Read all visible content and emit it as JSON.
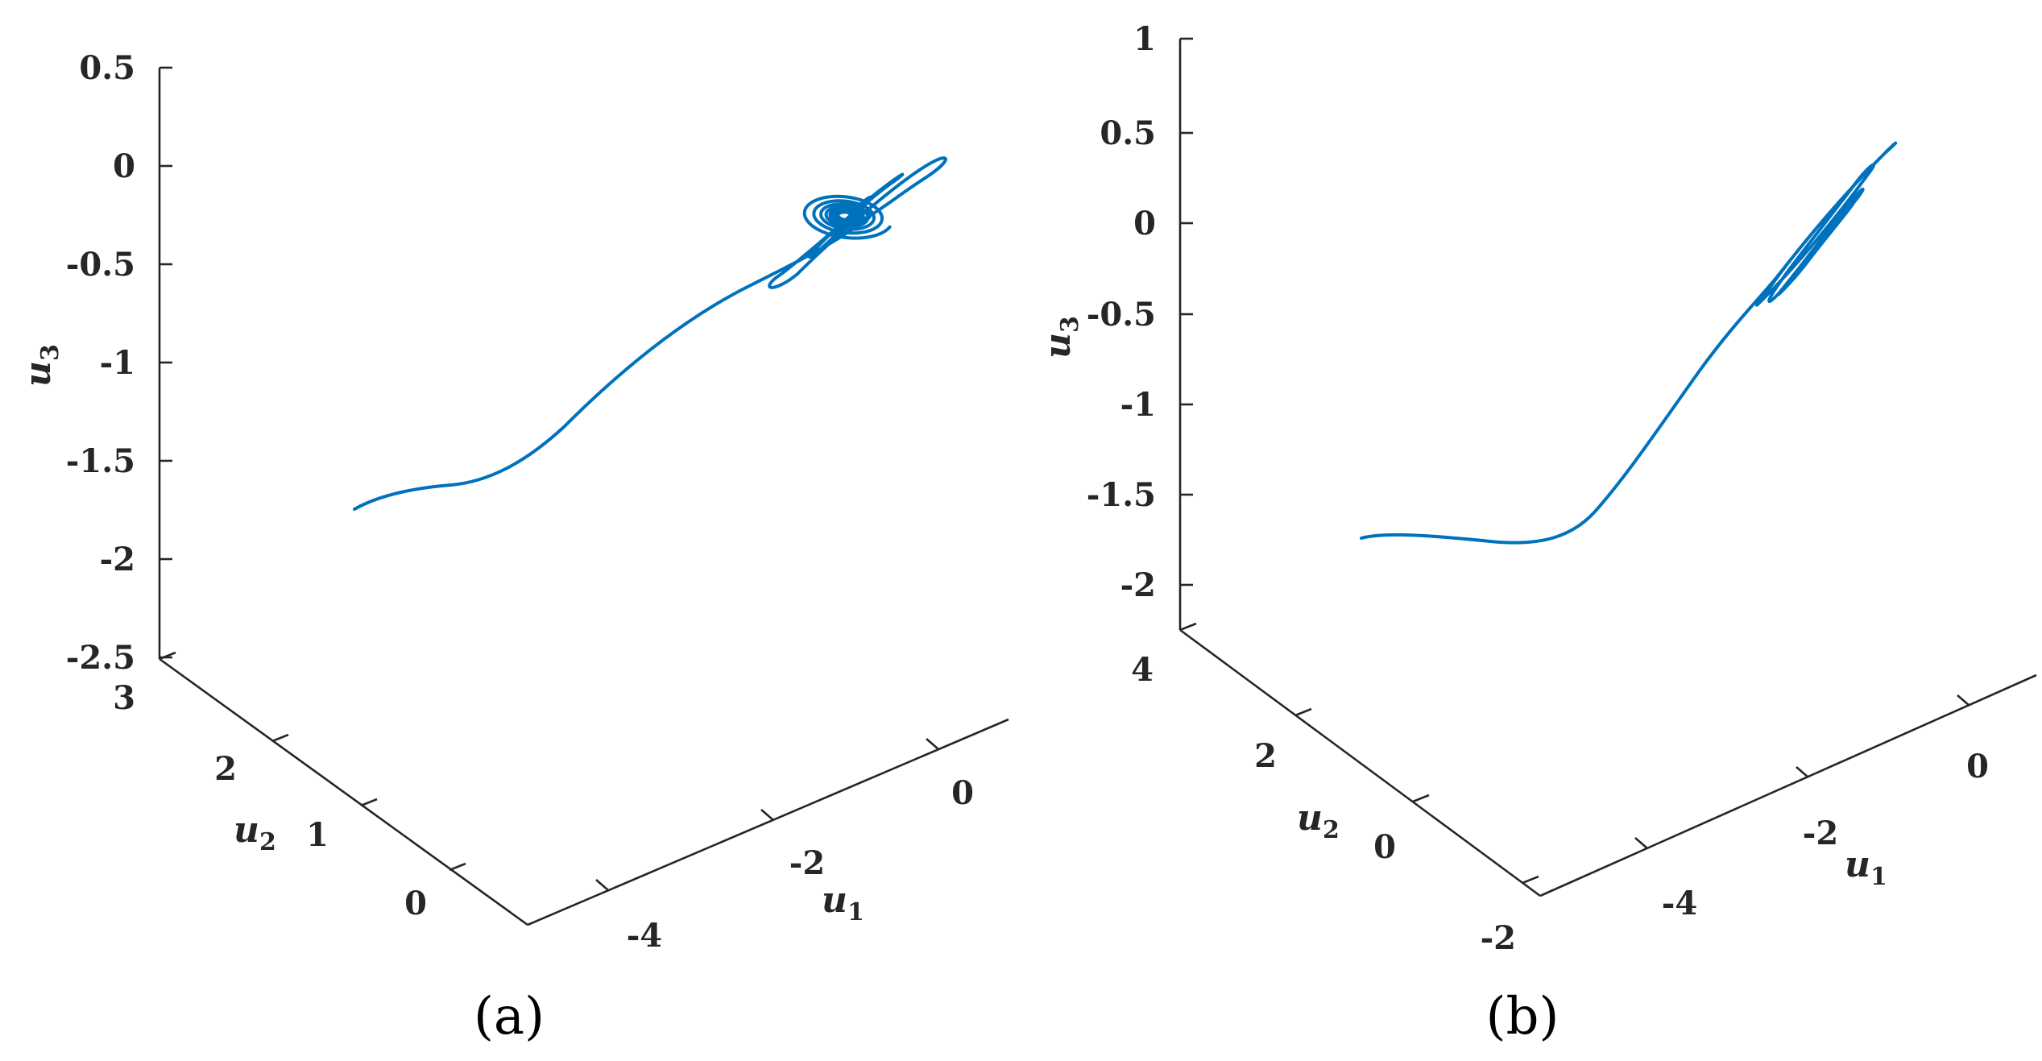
{
  "colors": {
    "trajectory": "#0072BD",
    "axis": "#262626"
  },
  "chart_data": [
    {
      "type": "line",
      "panel_label": "(a)",
      "xlabel": "u1",
      "ylabel": "u2",
      "zlabel": "u3",
      "x_ticks": [
        "-4",
        "-2",
        "0"
      ],
      "y_ticks": [
        "0",
        "1",
        "2",
        "3"
      ],
      "z_ticks": [
        "0.5",
        "0",
        "-0.5",
        "-1",
        "-1.5",
        "-2",
        "-2.5"
      ],
      "series": [
        {
          "points_u1_u2_u3": [
            [
              -5.7,
              2.3,
              -1.75
            ],
            [
              -5.3,
              2.2,
              -1.68
            ],
            [
              -4.8,
              1.9,
              -1.55
            ],
            [
              -4.2,
              1.6,
              -1.3
            ],
            [
              -3.5,
              1.2,
              -1.0
            ],
            [
              -2.8,
              0.9,
              -0.72
            ],
            [
              -2.2,
              0.75,
              -0.52
            ],
            [
              -1.8,
              0.65,
              -0.45
            ],
            [
              -1.2,
              0.5,
              -0.3
            ],
            [
              -0.8,
              0.6,
              -0.28
            ],
            [
              -1.6,
              0.9,
              -0.5
            ],
            [
              -1.1,
              0.55,
              -0.35
            ],
            [
              -1.3,
              0.7,
              -0.32
            ],
            [
              -1.2,
              0.62,
              -0.3
            ],
            [
              -1.22,
              0.64,
              -0.31
            ]
          ]
        }
      ]
    },
    {
      "type": "line",
      "panel_label": "(b)",
      "xlabel": "u1",
      "ylabel": "u2",
      "zlabel": "u3",
      "x_ticks": [
        "-4",
        "-2",
        "0"
      ],
      "y_ticks": [
        "-2",
        "0",
        "2",
        "4"
      ],
      "z_ticks": [
        "1",
        "0.5",
        "0",
        "-0.5",
        "-1",
        "-1.5",
        "-2"
      ],
      "series": [
        {
          "points_u1_u2_u3": [
            [
              -5.5,
              1.8,
              -1.78
            ],
            [
              -5.0,
              1.6,
              -1.8
            ],
            [
              -4.4,
              1.3,
              -1.75
            ],
            [
              -3.8,
              1.0,
              -1.5
            ],
            [
              -3.1,
              0.7,
              -1.05
            ],
            [
              -2.6,
              0.5,
              -0.65
            ],
            [
              -2.2,
              0.4,
              -0.4
            ],
            [
              -1.3,
              0.6,
              0.45
            ],
            [
              -2.4,
              0.8,
              -0.7
            ],
            [
              -1.6,
              0.5,
              0.3
            ],
            [
              -2.2,
              0.6,
              -0.5
            ],
            [
              -1.9,
              0.55,
              -0.2
            ]
          ]
        }
      ]
    }
  ]
}
